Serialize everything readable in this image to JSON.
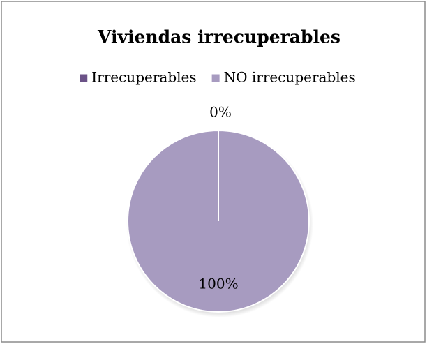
{
  "chart_data": {
    "type": "pie",
    "title": "Viviendas irrecuperables",
    "categories": [
      "Irrecuperables",
      "NO irrecuperables"
    ],
    "values": [
      0,
      100
    ],
    "value_labels": [
      "0%",
      "100%"
    ],
    "colors": [
      "#6b5287",
      "#a79bc0"
    ],
    "legend": "top"
  }
}
